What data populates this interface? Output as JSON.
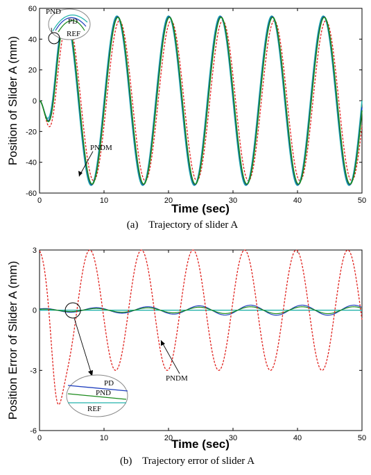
{
  "chart_data": [
    {
      "type": "line",
      "title": "",
      "caption": "(a)    Trajectory of slider A",
      "xlabel": "Time (sec)",
      "ylabel": "Position of Slider A (mm)",
      "xlim": [
        0,
        50
      ],
      "ylim": [
        -60,
        60
      ],
      "xticks": [
        "0",
        "10",
        "20",
        "30",
        "40",
        "50"
      ],
      "yticks": [
        "60",
        "40",
        "20",
        "0",
        "-20",
        "-40",
        "-60"
      ],
      "grid": false,
      "series": [
        {
          "name": "REF",
          "color": "#20b2aa",
          "style": "solid",
          "form": "sinusoid",
          "amplitude": 55,
          "period": 8,
          "phase_sec": 4,
          "startup_ramp_sec": 3
        },
        {
          "name": "PD",
          "color": "#1f3fbf",
          "style": "solid",
          "form": "sinusoid",
          "amplitude": 54.6,
          "period": 8,
          "phase_sec": 4.1
        },
        {
          "name": "PND",
          "color": "#1a8a1a",
          "style": "solid",
          "form": "sinusoid",
          "amplitude": 54.2,
          "period": 8,
          "phase_sec": 4.15
        },
        {
          "name": "PNDM",
          "color": "#e0201c",
          "style": "dashed",
          "form": "sinusoid",
          "amplitude": 52,
          "period": 8,
          "phase_sec": 4.4
        }
      ],
      "annotations": [
        "PND",
        "PD",
        "REF",
        "PNDM"
      ]
    },
    {
      "type": "line",
      "title": "",
      "caption": "(b)    Trajectory error of slider A",
      "xlabel": "Time (sec)",
      "ylabel": "Position Error of Slider A (mm)",
      "xlim": [
        0,
        50
      ],
      "ylim": [
        -6,
        3
      ],
      "xticks": [
        "0",
        "10",
        "20",
        "30",
        "40",
        "50"
      ],
      "yticks": [
        "3",
        "0",
        "-3",
        "-6"
      ],
      "grid": false,
      "series": [
        {
          "name": "REF",
          "color": "#20b2aa",
          "style": "solid",
          "values_constant": 0
        },
        {
          "name": "PD",
          "color": "#1f3fbf",
          "style": "solid",
          "form": "small oscillation",
          "max_abs_error": 0.25
        },
        {
          "name": "PND",
          "color": "#1a8a1a",
          "style": "solid",
          "form": "small oscillation",
          "max_abs_error": 0.2
        },
        {
          "name": "PNDM",
          "color": "#e0201c",
          "style": "dashed",
          "form": "sinusoid",
          "amplitude": 3.0,
          "period": 8,
          "initial_min": -5.3
        }
      ],
      "annotations": [
        "PD",
        "PND",
        "REF",
        "PNDM"
      ]
    }
  ]
}
